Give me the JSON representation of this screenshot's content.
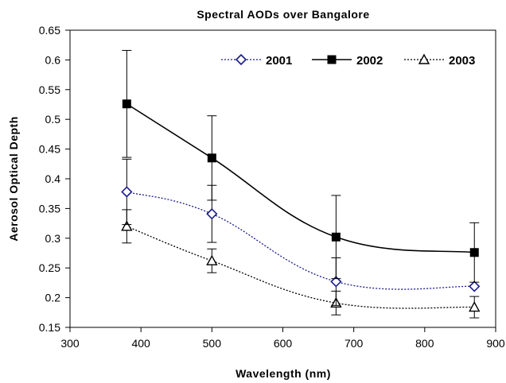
{
  "chart_data": {
    "type": "line",
    "title": "Spectral AODs over Bangalore",
    "xlabel": "Wavelength (nm)",
    "ylabel": "Aerosol Optical Depth",
    "xlim": [
      300,
      900
    ],
    "ylim": [
      0.15,
      0.65
    ],
    "xticks": [
      "300",
      "400",
      "500",
      "600",
      "700",
      "800",
      "900"
    ],
    "yticks": [
      "0.15",
      "0.2",
      "0.25",
      "0.3",
      "0.35",
      "0.4",
      "0.45",
      "0.5",
      "0.55",
      "0.6",
      "0.65"
    ],
    "grid": false,
    "legend": "top-right",
    "x": [
      380,
      500,
      675,
      870
    ],
    "series": [
      {
        "name": "2001",
        "values": [
          0.378,
          0.341,
          0.227,
          0.219
        ],
        "error": [
          0.055,
          0.048,
          0.04,
          0.0
        ],
        "line": "dotted",
        "marker": "diamond-open",
        "color": "#1a1a8c"
      },
      {
        "name": "2002",
        "values": [
          0.526,
          0.435,
          0.302,
          0.276
        ],
        "error": [
          0.09,
          0.071,
          0.07,
          0.05
        ],
        "line": "solid",
        "marker": "square-filled",
        "color": "#000000"
      },
      {
        "name": "2003",
        "values": [
          0.32,
          0.262,
          0.191,
          0.184
        ],
        "error": [
          0.028,
          0.02,
          0.02,
          0.018
        ],
        "line": "dotted",
        "marker": "triangle-open",
        "color": "#000000"
      }
    ]
  }
}
